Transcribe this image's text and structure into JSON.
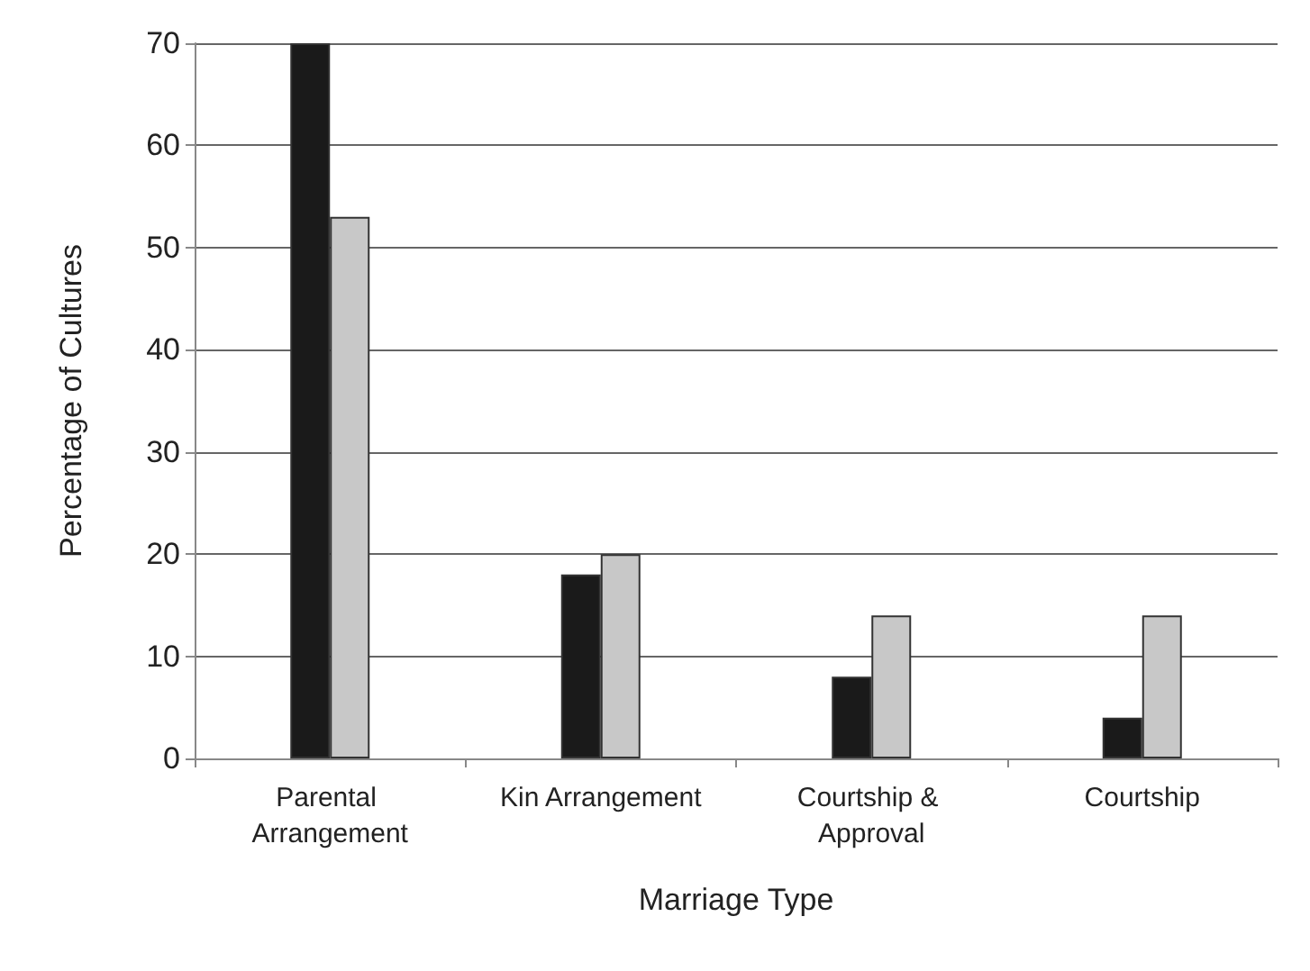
{
  "chart_data": {
    "type": "bar",
    "xlabel": "Marriage Type",
    "ylabel": "Percentage of Cultures",
    "categories": [
      "Parental Arrangement",
      "Kin Arrangement",
      "Courtship & Approval",
      "Courtship"
    ],
    "series": [
      {
        "color": "#1a1a1a",
        "values": [
          70,
          18,
          8,
          4
        ]
      },
      {
        "color": "#c8c8c8",
        "values": [
          53,
          20,
          14,
          14
        ]
      }
    ],
    "ylim": [
      0,
      70
    ],
    "yticks": [
      0,
      10,
      20,
      30,
      40,
      50,
      60,
      70
    ],
    "grid": "y"
  }
}
